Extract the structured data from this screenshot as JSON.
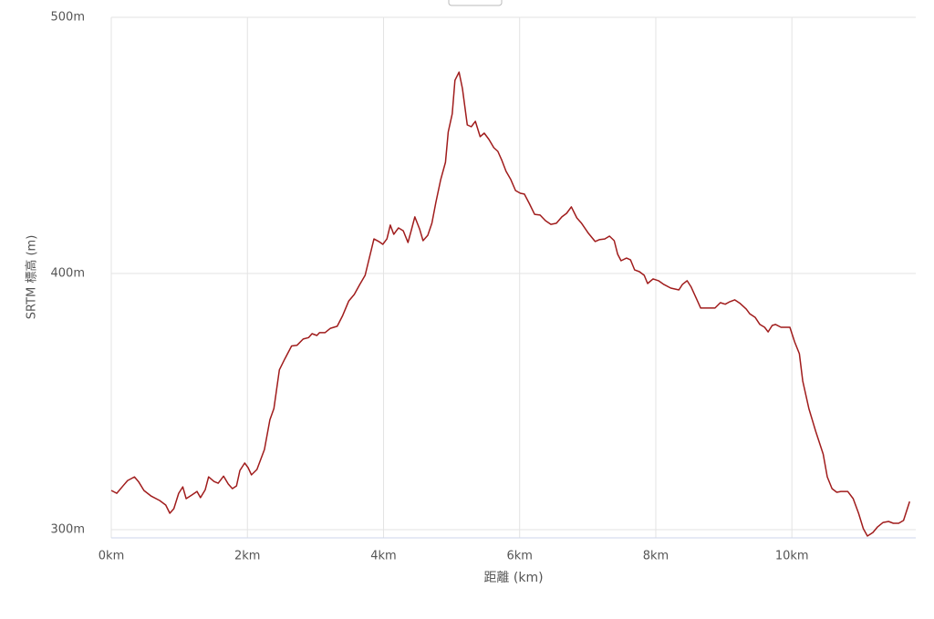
{
  "chart_data": {
    "type": "line",
    "x_label": "距離 (km)",
    "y_label": "SRTM 標高 (m)",
    "xlim": [
      0,
      11.82
    ],
    "ylim": [
      296.8,
      500
    ],
    "xticks": [
      {
        "value": 0,
        "label": "0km"
      },
      {
        "value": 2,
        "label": "2km"
      },
      {
        "value": 4,
        "label": "4km"
      },
      {
        "value": 6,
        "label": "6km"
      },
      {
        "value": 8,
        "label": "8km"
      },
      {
        "value": 10,
        "label": "10km"
      }
    ],
    "yticks": [
      {
        "value": 300,
        "label": "300m"
      },
      {
        "value": 400,
        "label": "400m"
      },
      {
        "value": 500,
        "label": "500m"
      }
    ],
    "grid": true,
    "series": [
      {
        "color": "#a01c1c",
        "x": [
          0,
          0.08,
          0.17,
          0.24,
          0.34,
          0.4,
          0.48,
          0.58,
          0.71,
          0.8,
          0.86,
          0.92,
          0.99,
          1.05,
          1.1,
          1.18,
          1.26,
          1.31,
          1.38,
          1.43,
          1.51,
          1.57,
          1.65,
          1.72,
          1.78,
          1.84,
          1.89,
          1.96,
          2.01,
          2.06,
          2.14,
          2.25,
          2.33,
          2.39,
          2.47,
          2.55,
          2.65,
          2.73,
          2.82,
          2.9,
          2.95,
          3.02,
          3.06,
          3.14,
          3.22,
          3.32,
          3.4,
          3.49,
          3.57,
          3.65,
          3.73,
          3.86,
          3.93,
          3.99,
          4.05,
          4.1,
          4.15,
          4.22,
          4.29,
          4.36,
          4.41,
          4.46,
          4.53,
          4.58,
          4.65,
          4.71,
          4.77,
          4.84,
          4.91,
          4.95,
          5.01,
          5.05,
          5.11,
          5.16,
          5.23,
          5.29,
          5.35,
          5.42,
          5.48,
          5.55,
          5.62,
          5.68,
          5.74,
          5.8,
          5.87,
          5.94,
          6.01,
          6.07,
          6.14,
          6.22,
          6.3,
          6.38,
          6.46,
          6.54,
          6.62,
          6.69,
          6.76,
          6.84,
          6.91,
          7.01,
          7.11,
          7.17,
          7.25,
          7.32,
          7.39,
          7.44,
          7.49,
          7.57,
          7.63,
          7.69,
          7.76,
          7.83,
          7.88,
          7.96,
          8.04,
          8.12,
          8.22,
          8.34,
          8.39,
          8.46,
          8.52,
          8.66,
          8.87,
          8.95,
          9.02,
          9.09,
          9.16,
          9.24,
          9.33,
          9.38,
          9.46,
          9.53,
          9.6,
          9.65,
          9.71,
          9.76,
          9.84,
          9.97,
          10.04,
          10.11,
          10.16,
          10.25,
          10.35,
          10.46,
          10.52,
          10.59,
          10.66,
          10.72,
          10.82,
          10.9,
          10.98,
          11.05,
          11.11,
          11.19,
          11.26,
          11.34,
          11.42,
          11.49,
          11.57,
          11.64,
          11.73
        ],
        "values": [
          315.3,
          314.2,
          317,
          319.2,
          320.6,
          318.8,
          315.3,
          313.2,
          311.4,
          309.6,
          306.4,
          308.2,
          314.2,
          316.7,
          312.1,
          313.5,
          314.9,
          312.5,
          315.6,
          320.6,
          318.8,
          318.1,
          320.9,
          317.8,
          316,
          317.1,
          323.1,
          326,
          324.2,
          321.4,
          323.5,
          331.3,
          342.9,
          347.3,
          362.4,
          366.7,
          371.7,
          372,
          374.4,
          375,
          376.5,
          375.8,
          376.9,
          376.9,
          378.6,
          379.4,
          383.6,
          389.3,
          391.8,
          395.7,
          399.3,
          413.5,
          412.5,
          411.4,
          413.5,
          418.9,
          415.3,
          417.8,
          416.7,
          412.1,
          417.1,
          422.1,
          417.4,
          412.8,
          414.9,
          419.6,
          427.8,
          436.7,
          443.4,
          455.2,
          462.3,
          475.4,
          478.6,
          472.2,
          458,
          457.3,
          459.4,
          453.4,
          454.8,
          452.3,
          449.1,
          447.7,
          444.1,
          439.9,
          436.7,
          432.4,
          431.3,
          431,
          427.4,
          423.1,
          422.8,
          420.6,
          419.2,
          419.6,
          422.1,
          423.5,
          426,
          421.7,
          419.6,
          415.7,
          412.5,
          413.2,
          413.5,
          414.6,
          412.8,
          407.5,
          405,
          406,
          405.3,
          401.4,
          400.7,
          399.3,
          396.1,
          397.9,
          397.2,
          395.7,
          394.3,
          393.6,
          395.7,
          397.2,
          394.7,
          386.5,
          386.5,
          388.6,
          388,
          389,
          389.7,
          388.3,
          386.1,
          384.3,
          382.9,
          380.1,
          379,
          377.2,
          379.7,
          380.1,
          379,
          379,
          373.3,
          368.7,
          358,
          347.3,
          338.4,
          329.5,
          320.6,
          316,
          314.6,
          314.9,
          314.9,
          312.1,
          306.4,
          300.4,
          297.5,
          298.9,
          301.1,
          302.8,
          303.2,
          302.5,
          302.5,
          303.6,
          311
        ]
      }
    ]
  }
}
